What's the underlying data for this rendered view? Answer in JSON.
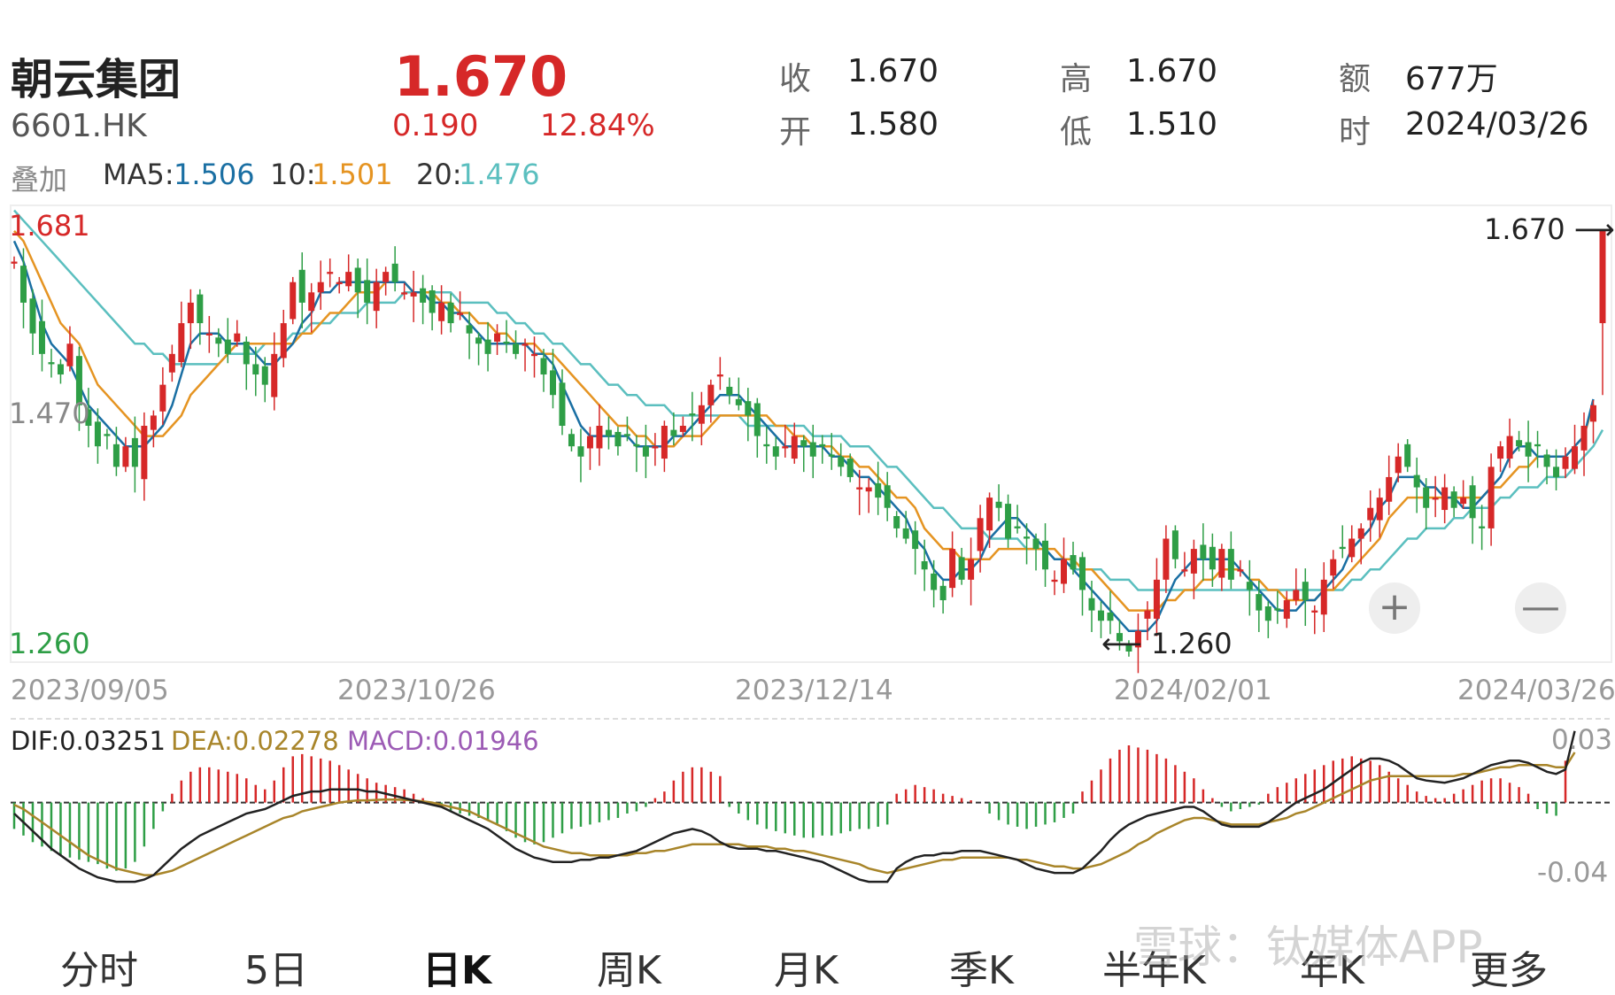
{
  "stock": {
    "name": "朝云集团",
    "code": "6601.HK",
    "price": "1.670",
    "change": "0.190",
    "change_pct": "12.84%"
  },
  "quote": {
    "close_label": "收",
    "close": "1.670",
    "open_label": "开",
    "open": "1.580",
    "high_label": "高",
    "high": "1.670",
    "low_label": "低",
    "low": "1.510",
    "amount_label": "额",
    "amount": "677万",
    "time_label": "时",
    "time": "2024/03/26"
  },
  "overlay": {
    "label": "叠加",
    "ma5_label": "MA5:",
    "ma5": "1.506",
    "ma10_label": "10:",
    "ma10": "1.501",
    "ma20_label": "20:",
    "ma20": "1.476"
  },
  "colors": {
    "up": "#d62828",
    "down": "#2e9e46",
    "ma5": "#1a6fa3",
    "ma10": "#e59422",
    "ma20": "#5bbfbf",
    "dif": "#222222",
    "dea": "#a8852a",
    "macd": "#9c5bb5"
  },
  "axis": {
    "price_max": "1.681",
    "price_mid": "1.470",
    "price_min": "1.260",
    "macd_max": "0.03",
    "macd_min": "-0.04",
    "dates": [
      "2023/09/05",
      "2023/10/26",
      "2023/12/14",
      "2024/02/01",
      "2024/03/26"
    ]
  },
  "annotations": {
    "last_price": "1.670",
    "low_price": "1.260"
  },
  "macd": {
    "dif_label": "DIF:0.03251",
    "dea_label": "DEA:0.02278",
    "macd_label": "MACD:0.01946"
  },
  "controls": {
    "zoom_in": "+",
    "zoom_out": "—"
  },
  "tabs": [
    "分时",
    "5日",
    "日K",
    "周K",
    "月K",
    "季K",
    "半年K",
    "年K",
    "更多"
  ],
  "active_tab": "日K",
  "watermark": "雪球：钛媒体APP",
  "chart_data": {
    "type": "candlestick",
    "ylim": [
      1.26,
      1.681
    ],
    "start_date": "2023/09/05",
    "end_date": "2024/03/26",
    "closes": [
      1.64,
      1.6,
      1.57,
      1.55,
      1.54,
      1.53,
      1.56,
      1.5,
      1.48,
      1.46,
      1.47,
      1.44,
      1.46,
      1.44,
      1.48,
      1.49,
      1.52,
      1.55,
      1.58,
      1.6,
      1.58,
      1.57,
      1.56,
      1.55,
      1.57,
      1.54,
      1.53,
      1.52,
      1.55,
      1.58,
      1.62,
      1.6,
      1.61,
      1.62,
      1.63,
      1.62,
      1.63,
      1.61,
      1.6,
      1.62,
      1.63,
      1.62,
      1.61,
      1.61,
      1.6,
      1.59,
      1.6,
      1.58,
      1.59,
      1.57,
      1.56,
      1.55,
      1.57,
      1.56,
      1.55,
      1.56,
      1.55,
      1.53,
      1.51,
      1.48,
      1.46,
      1.45,
      1.47,
      1.48,
      1.47,
      1.46,
      1.47,
      1.46,
      1.45,
      1.46,
      1.48,
      1.47,
      1.48,
      1.49,
      1.5,
      1.52,
      1.53,
      1.51,
      1.5,
      1.49,
      1.47,
      1.46,
      1.45,
      1.46,
      1.47,
      1.46,
      1.45,
      1.46,
      1.45,
      1.44,
      1.43,
      1.42,
      1.42,
      1.41,
      1.4,
      1.38,
      1.37,
      1.36,
      1.34,
      1.32,
      1.31,
      1.36,
      1.33,
      1.35,
      1.39,
      1.41,
      1.4,
      1.37,
      1.38,
      1.37,
      1.36,
      1.34,
      1.33,
      1.35,
      1.34,
      1.32,
      1.3,
      1.29,
      1.29,
      1.27,
      1.26,
      1.28,
      1.3,
      1.33,
      1.37,
      1.35,
      1.34,
      1.36,
      1.35,
      1.34,
      1.36,
      1.33,
      1.34,
      1.32,
      1.3,
      1.29,
      1.3,
      1.31,
      1.32,
      1.31,
      1.3,
      1.33,
      1.35,
      1.36,
      1.37,
      1.38,
      1.4,
      1.41,
      1.43,
      1.45,
      1.44,
      1.42,
      1.4,
      1.41,
      1.42,
      1.4,
      1.41,
      1.39,
      1.38,
      1.44,
      1.46,
      1.47,
      1.46,
      1.45,
      1.46,
      1.44,
      1.43,
      1.45,
      1.46,
      1.48,
      1.5,
      1.67
    ],
    "ma5": [
      1.66,
      1.64,
      1.61,
      1.58,
      1.56,
      1.55,
      1.54,
      1.52,
      1.5,
      1.49,
      1.48,
      1.47,
      1.46,
      1.46,
      1.46,
      1.47,
      1.48,
      1.5,
      1.53,
      1.56,
      1.57,
      1.57,
      1.57,
      1.56,
      1.56,
      1.56,
      1.55,
      1.54,
      1.54,
      1.55,
      1.56,
      1.58,
      1.59,
      1.61,
      1.61,
      1.62,
      1.62,
      1.62,
      1.62,
      1.62,
      1.62,
      1.62,
      1.62,
      1.61,
      1.61,
      1.6,
      1.6,
      1.59,
      1.59,
      1.58,
      1.57,
      1.56,
      1.56,
      1.56,
      1.56,
      1.56,
      1.55,
      1.55,
      1.54,
      1.52,
      1.5,
      1.48,
      1.47,
      1.47,
      1.47,
      1.47,
      1.47,
      1.46,
      1.46,
      1.46,
      1.46,
      1.47,
      1.47,
      1.48,
      1.49,
      1.5,
      1.51,
      1.51,
      1.51,
      1.5,
      1.49,
      1.48,
      1.47,
      1.46,
      1.46,
      1.46,
      1.46,
      1.46,
      1.45,
      1.45,
      1.44,
      1.43,
      1.43,
      1.42,
      1.41,
      1.4,
      1.39,
      1.37,
      1.36,
      1.34,
      1.33,
      1.33,
      1.34,
      1.34,
      1.35,
      1.37,
      1.38,
      1.39,
      1.39,
      1.38,
      1.37,
      1.36,
      1.35,
      1.35,
      1.34,
      1.33,
      1.32,
      1.31,
      1.3,
      1.29,
      1.28,
      1.28,
      1.28,
      1.29,
      1.31,
      1.33,
      1.34,
      1.35,
      1.35,
      1.35,
      1.35,
      1.35,
      1.34,
      1.33,
      1.32,
      1.31,
      1.3,
      1.3,
      1.3,
      1.31,
      1.31,
      1.32,
      1.33,
      1.34,
      1.36,
      1.37,
      1.38,
      1.4,
      1.41,
      1.43,
      1.43,
      1.43,
      1.42,
      1.42,
      1.41,
      1.41,
      1.4,
      1.4,
      1.41,
      1.42,
      1.43,
      1.45,
      1.46,
      1.46,
      1.45,
      1.45,
      1.45,
      1.45,
      1.46,
      1.47,
      1.506
    ],
    "ma10": [
      1.67,
      1.66,
      1.64,
      1.62,
      1.6,
      1.58,
      1.57,
      1.56,
      1.54,
      1.52,
      1.51,
      1.5,
      1.49,
      1.48,
      1.47,
      1.47,
      1.47,
      1.48,
      1.49,
      1.51,
      1.52,
      1.53,
      1.54,
      1.55,
      1.56,
      1.56,
      1.56,
      1.56,
      1.56,
      1.56,
      1.56,
      1.57,
      1.57,
      1.58,
      1.59,
      1.59,
      1.6,
      1.61,
      1.61,
      1.61,
      1.62,
      1.62,
      1.62,
      1.61,
      1.61,
      1.61,
      1.6,
      1.6,
      1.59,
      1.59,
      1.58,
      1.58,
      1.57,
      1.57,
      1.56,
      1.56,
      1.56,
      1.55,
      1.55,
      1.54,
      1.53,
      1.52,
      1.51,
      1.5,
      1.49,
      1.48,
      1.48,
      1.47,
      1.47,
      1.46,
      1.46,
      1.46,
      1.47,
      1.47,
      1.47,
      1.48,
      1.49,
      1.49,
      1.49,
      1.49,
      1.49,
      1.49,
      1.48,
      1.48,
      1.47,
      1.47,
      1.46,
      1.46,
      1.46,
      1.45,
      1.45,
      1.44,
      1.44,
      1.43,
      1.42,
      1.41,
      1.41,
      1.4,
      1.38,
      1.37,
      1.36,
      1.36,
      1.35,
      1.35,
      1.35,
      1.35,
      1.36,
      1.36,
      1.36,
      1.36,
      1.36,
      1.36,
      1.36,
      1.35,
      1.35,
      1.34,
      1.34,
      1.33,
      1.32,
      1.31,
      1.3,
      1.3,
      1.3,
      1.3,
      1.31,
      1.31,
      1.32,
      1.32,
      1.33,
      1.33,
      1.34,
      1.34,
      1.34,
      1.33,
      1.33,
      1.32,
      1.32,
      1.31,
      1.31,
      1.31,
      1.31,
      1.32,
      1.32,
      1.33,
      1.34,
      1.35,
      1.36,
      1.37,
      1.39,
      1.4,
      1.41,
      1.41,
      1.41,
      1.41,
      1.41,
      1.41,
      1.41,
      1.41,
      1.41,
      1.42,
      1.42,
      1.43,
      1.44,
      1.44,
      1.45,
      1.45,
      1.45,
      1.45,
      1.46,
      1.47,
      1.501
    ],
    "ma20": [
      1.69,
      1.68,
      1.67,
      1.66,
      1.65,
      1.64,
      1.63,
      1.62,
      1.61,
      1.6,
      1.59,
      1.58,
      1.57,
      1.56,
      1.56,
      1.55,
      1.55,
      1.54,
      1.54,
      1.54,
      1.54,
      1.54,
      1.54,
      1.55,
      1.55,
      1.55,
      1.55,
      1.56,
      1.56,
      1.56,
      1.57,
      1.57,
      1.58,
      1.58,
      1.58,
      1.59,
      1.59,
      1.59,
      1.6,
      1.6,
      1.6,
      1.6,
      1.61,
      1.61,
      1.61,
      1.61,
      1.61,
      1.61,
      1.6,
      1.6,
      1.6,
      1.6,
      1.59,
      1.59,
      1.58,
      1.58,
      1.57,
      1.57,
      1.56,
      1.56,
      1.55,
      1.54,
      1.54,
      1.53,
      1.52,
      1.52,
      1.51,
      1.51,
      1.5,
      1.5,
      1.5,
      1.49,
      1.49,
      1.49,
      1.49,
      1.49,
      1.49,
      1.49,
      1.49,
      1.48,
      1.48,
      1.48,
      1.48,
      1.48,
      1.48,
      1.48,
      1.47,
      1.47,
      1.47,
      1.47,
      1.46,
      1.46,
      1.46,
      1.45,
      1.44,
      1.44,
      1.43,
      1.42,
      1.41,
      1.4,
      1.4,
      1.39,
      1.38,
      1.38,
      1.38,
      1.37,
      1.37,
      1.37,
      1.37,
      1.36,
      1.36,
      1.36,
      1.35,
      1.35,
      1.34,
      1.34,
      1.34,
      1.34,
      1.33,
      1.33,
      1.33,
      1.32,
      1.32,
      1.32,
      1.32,
      1.32,
      1.32,
      1.32,
      1.32,
      1.32,
      1.32,
      1.32,
      1.32,
      1.32,
      1.32,
      1.32,
      1.32,
      1.32,
      1.32,
      1.32,
      1.32,
      1.32,
      1.32,
      1.32,
      1.33,
      1.33,
      1.34,
      1.34,
      1.35,
      1.36,
      1.37,
      1.37,
      1.38,
      1.38,
      1.38,
      1.39,
      1.39,
      1.4,
      1.4,
      1.4,
      1.41,
      1.41,
      1.42,
      1.42,
      1.42,
      1.43,
      1.43,
      1.43,
      1.44,
      1.45,
      1.46,
      1.476
    ],
    "macd_hist": [
      -0.012,
      -0.015,
      -0.018,
      -0.02,
      -0.022,
      -0.024,
      -0.025,
      -0.026,
      -0.027,
      -0.028,
      -0.03,
      -0.031,
      -0.03,
      -0.027,
      -0.02,
      -0.012,
      -0.004,
      0.004,
      0.01,
      0.014,
      0.016,
      0.016,
      0.015,
      0.014,
      0.013,
      0.011,
      0.008,
      0.006,
      0.01,
      0.016,
      0.021,
      0.022,
      0.021,
      0.02,
      0.019,
      0.017,
      0.015,
      0.013,
      0.011,
      0.009,
      0.008,
      0.007,
      0.006,
      0.004,
      0.002,
      0.0,
      -0.002,
      -0.004,
      -0.005,
      -0.006,
      -0.007,
      -0.008,
      -0.01,
      -0.013,
      -0.016,
      -0.018,
      -0.019,
      -0.018,
      -0.016,
      -0.014,
      -0.012,
      -0.011,
      -0.01,
      -0.009,
      -0.008,
      -0.007,
      -0.005,
      -0.004,
      -0.002,
      0.002,
      0.005,
      0.01,
      0.014,
      0.016,
      0.016,
      0.014,
      0.012,
      -0.002,
      -0.005,
      -0.008,
      -0.01,
      -0.012,
      -0.013,
      -0.014,
      -0.015,
      -0.016,
      -0.016,
      -0.015,
      -0.015,
      -0.014,
      -0.013,
      -0.012,
      -0.012,
      -0.011,
      -0.01,
      0.004,
      0.006,
      0.008,
      0.007,
      0.006,
      0.004,
      0.003,
      0.002,
      0.001,
      0.0,
      -0.005,
      -0.008,
      -0.01,
      -0.011,
      -0.012,
      -0.011,
      -0.01,
      -0.009,
      -0.007,
      -0.005,
      0.005,
      0.01,
      0.015,
      0.02,
      0.024,
      0.026,
      0.025,
      0.024,
      0.022,
      0.02,
      0.017,
      0.014,
      0.011,
      0.006,
      0.002,
      -0.002,
      -0.004,
      -0.003,
      -0.002,
      -0.001,
      0.004,
      0.007,
      0.009,
      0.011,
      0.013,
      0.015,
      0.017,
      0.019,
      0.02,
      0.021,
      0.02,
      0.019,
      0.017,
      0.014,
      0.011,
      0.008,
      0.005,
      0.003,
      0.002,
      0.002,
      0.004,
      0.006,
      0.008,
      0.01,
      0.011,
      0.011,
      0.009,
      0.007,
      0.004,
      -0.003,
      -0.005,
      -0.006,
      0.019
    ],
    "dif": [
      -0.005,
      -0.009,
      -0.013,
      -0.017,
      -0.021,
      -0.024,
      -0.027,
      -0.03,
      -0.032,
      -0.034,
      -0.035,
      -0.036,
      -0.036,
      -0.036,
      -0.035,
      -0.033,
      -0.029,
      -0.025,
      -0.021,
      -0.018,
      -0.015,
      -0.013,
      -0.011,
      -0.009,
      -0.007,
      -0.005,
      -0.004,
      -0.003,
      -0.001,
      0.001,
      0.003,
      0.004,
      0.005,
      0.005,
      0.006,
      0.006,
      0.006,
      0.006,
      0.005,
      0.005,
      0.004,
      0.003,
      0.002,
      0.001,
      0.0,
      -0.001,
      -0.002,
      -0.004,
      -0.006,
      -0.008,
      -0.01,
      -0.012,
      -0.015,
      -0.018,
      -0.021,
      -0.023,
      -0.025,
      -0.026,
      -0.027,
      -0.027,
      -0.027,
      -0.026,
      -0.026,
      -0.025,
      -0.025,
      -0.024,
      -0.023,
      -0.022,
      -0.02,
      -0.018,
      -0.016,
      -0.014,
      -0.013,
      -0.012,
      -0.013,
      -0.015,
      -0.018,
      -0.02,
      -0.021,
      -0.021,
      -0.021,
      -0.022,
      -0.022,
      -0.023,
      -0.024,
      -0.025,
      -0.026,
      -0.027,
      -0.029,
      -0.031,
      -0.033,
      -0.035,
      -0.036,
      -0.036,
      -0.036,
      -0.03,
      -0.027,
      -0.025,
      -0.024,
      -0.024,
      -0.023,
      -0.023,
      -0.022,
      -0.022,
      -0.022,
      -0.023,
      -0.024,
      -0.025,
      -0.026,
      -0.028,
      -0.03,
      -0.031,
      -0.032,
      -0.032,
      -0.032,
      -0.03,
      -0.026,
      -0.022,
      -0.017,
      -0.013,
      -0.01,
      -0.008,
      -0.006,
      -0.005,
      -0.004,
      -0.003,
      -0.002,
      -0.002,
      -0.004,
      -0.007,
      -0.01,
      -0.011,
      -0.011,
      -0.011,
      -0.011,
      -0.009,
      -0.006,
      -0.003,
      0.0,
      0.002,
      0.004,
      0.006,
      0.009,
      0.012,
      0.015,
      0.018,
      0.02,
      0.02,
      0.019,
      0.017,
      0.014,
      0.011,
      0.01,
      0.0095,
      0.009,
      0.01,
      0.011,
      0.013,
      0.015,
      0.017,
      0.018,
      0.019,
      0.019,
      0.018,
      0.016,
      0.014,
      0.013,
      0.015,
      0.03251
    ],
    "dea": [
      -0.001,
      -0.003,
      -0.006,
      -0.009,
      -0.012,
      -0.015,
      -0.018,
      -0.021,
      -0.024,
      -0.026,
      -0.028,
      -0.03,
      -0.031,
      -0.032,
      -0.033,
      -0.033,
      -0.032,
      -0.031,
      -0.029,
      -0.027,
      -0.025,
      -0.023,
      -0.021,
      -0.019,
      -0.017,
      -0.015,
      -0.013,
      -0.011,
      -0.009,
      -0.007,
      -0.006,
      -0.004,
      -0.003,
      -0.002,
      -0.001,
      0.0,
      0.0005,
      0.001,
      0.001,
      0.0012,
      0.0014,
      0.0013,
      0.0012,
      0.001,
      0.0005,
      0.0,
      -0.001,
      -0.002,
      -0.003,
      -0.004,
      -0.006,
      -0.008,
      -0.01,
      -0.012,
      -0.014,
      -0.016,
      -0.018,
      -0.02,
      -0.021,
      -0.022,
      -0.023,
      -0.023,
      -0.024,
      -0.024,
      -0.024,
      -0.024,
      -0.024,
      -0.023,
      -0.023,
      -0.022,
      -0.022,
      -0.021,
      -0.02,
      -0.019,
      -0.019,
      -0.019,
      -0.019,
      -0.019,
      -0.019,
      -0.02,
      -0.02,
      -0.02,
      -0.021,
      -0.021,
      -0.022,
      -0.022,
      -0.023,
      -0.024,
      -0.025,
      -0.026,
      -0.027,
      -0.028,
      -0.03,
      -0.031,
      -0.032,
      -0.031,
      -0.03,
      -0.029,
      -0.028,
      -0.027,
      -0.026,
      -0.026,
      -0.025,
      -0.025,
      -0.025,
      -0.025,
      -0.025,
      -0.025,
      -0.026,
      -0.026,
      -0.027,
      -0.028,
      -0.029,
      -0.029,
      -0.03,
      -0.03,
      -0.029,
      -0.028,
      -0.026,
      -0.024,
      -0.022,
      -0.019,
      -0.017,
      -0.014,
      -0.012,
      -0.01,
      -0.008,
      -0.007,
      -0.007,
      -0.008,
      -0.009,
      -0.01,
      -0.01,
      -0.01,
      -0.01,
      -0.009,
      -0.008,
      -0.007,
      -0.005,
      -0.004,
      -0.002,
      0.0,
      0.002,
      0.004,
      0.006,
      0.008,
      0.01,
      0.011,
      0.012,
      0.012,
      0.012,
      0.012,
      0.012,
      0.012,
      0.012,
      0.012,
      0.013,
      0.013,
      0.014,
      0.015,
      0.016,
      0.016,
      0.017,
      0.017,
      0.017,
      0.017,
      0.016,
      0.016,
      0.02278
    ],
    "macd_ylim": [
      -0.04,
      0.03
    ]
  }
}
